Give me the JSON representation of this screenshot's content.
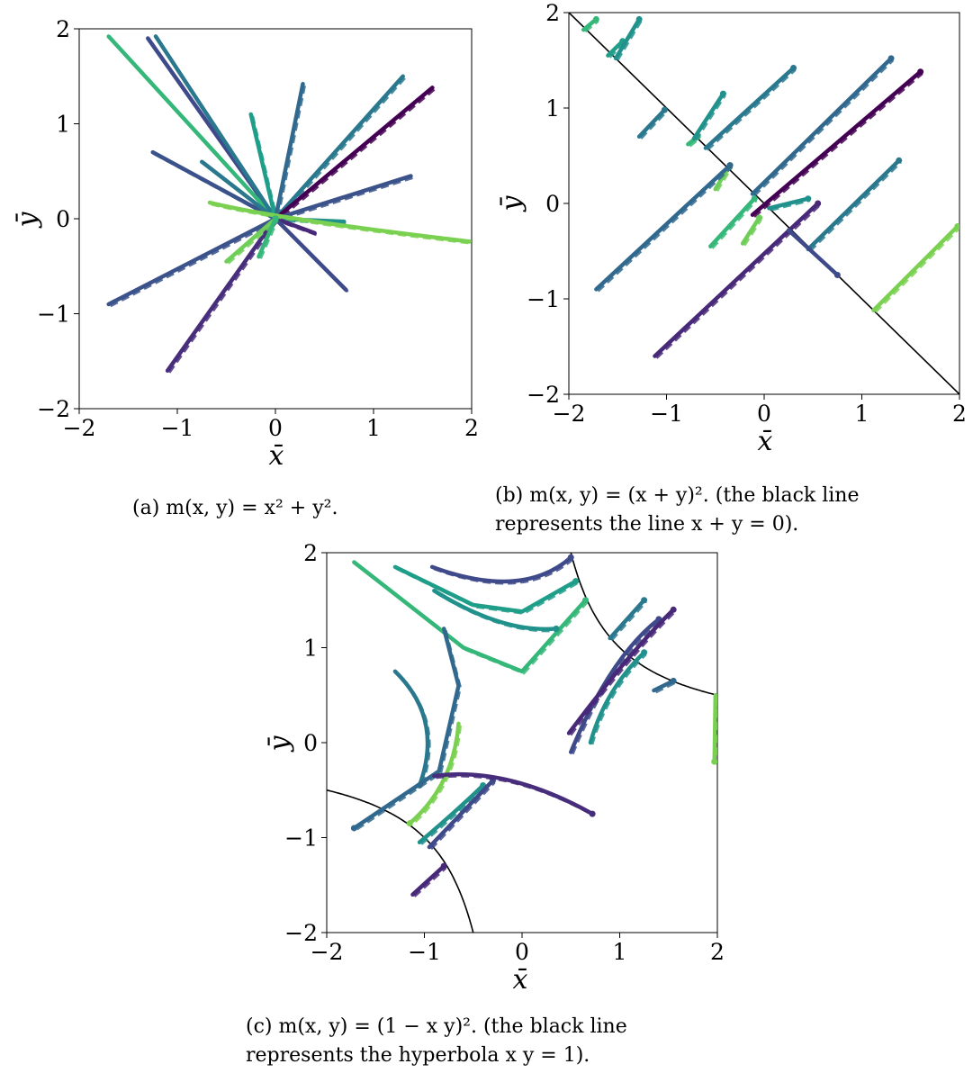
{
  "figure": {
    "caption_a": "(a) m(x, y) = x² + y².",
    "caption_b": "(b) m(x, y) = (x + y)². (the black line represents the line x + y = 0).",
    "caption_c": "(c) m(x, y) = (1 − x y)². (the black line represents the hyperbola x y = 1)."
  },
  "chart_data": [
    {
      "id": "a",
      "type": "line",
      "xlabel": "x̄",
      "ylabel": "ȳ",
      "xlim": [
        -2,
        2
      ],
      "ylim": [
        -2,
        2
      ],
      "xticks": [
        "−2",
        "−1",
        "0",
        "1",
        "2"
      ],
      "yticks": [
        "−2",
        "−1",
        "0",
        "1",
        "2"
      ],
      "grid": false,
      "legend": "none",
      "series": [
        {
          "color": "#3e4a89",
          "points": [
            [
              -1.3,
              1.9
            ],
            [
              0,
              0
            ]
          ]
        },
        {
          "color": "#35b779",
          "points": [
            [
              -1.7,
              1.92
            ],
            [
              0,
              0
            ]
          ]
        },
        {
          "color": "#2a788e",
          "points": [
            [
              -1.22,
              1.92
            ],
            [
              0,
              0
            ]
          ]
        },
        {
          "color": "#3b528b",
          "points": [
            [
              -1.25,
              0.7
            ],
            [
              0,
              0
            ]
          ]
        },
        {
          "color": "#2a788e",
          "points": [
            [
              -0.75,
              0.6
            ],
            [
              0,
              0
            ]
          ]
        },
        {
          "color": "#1f9e89",
          "points": [
            [
              -0.25,
              1.1
            ],
            [
              0,
              0
            ]
          ]
        },
        {
          "color": "#31688e",
          "points": [
            [
              0.28,
              1.42
            ],
            [
              0,
              0
            ]
          ]
        },
        {
          "color": "#2a788e",
          "points": [
            [
              1.3,
              1.5
            ],
            [
              0,
              0
            ]
          ]
        },
        {
          "color": "#440154",
          "points": [
            [
              1.6,
              1.38
            ],
            [
              0,
              0
            ]
          ]
        },
        {
          "color": "#3b528b",
          "points": [
            [
              1.38,
              0.45
            ],
            [
              0,
              0
            ]
          ]
        },
        {
          "color": "#21918c",
          "points": [
            [
              0.7,
              -0.03
            ],
            [
              0,
              0
            ]
          ]
        },
        {
          "color": "#482878",
          "points": [
            [
              0.4,
              -0.15
            ],
            [
              0,
              0
            ]
          ]
        },
        {
          "color": "#7ad151",
          "points": [
            [
              -0.67,
              0.17
            ],
            [
              0,
              0
            ],
            [
              1.98,
              -0.24
            ]
          ]
        },
        {
          "color": "#3e4a89",
          "points": [
            [
              0.72,
              -0.75
            ],
            [
              0,
              0
            ]
          ]
        },
        {
          "color": "#3b528b",
          "points": [
            [
              -1.7,
              -0.9
            ],
            [
              0,
              0
            ]
          ]
        },
        {
          "color": "#472d7b",
          "points": [
            [
              -1.1,
              -1.6
            ],
            [
              0,
              0
            ]
          ]
        },
        {
          "color": "#6ece58",
          "points": [
            [
              -0.5,
              -0.45
            ],
            [
              0,
              0
            ]
          ]
        },
        {
          "color": "#35b779",
          "points": [
            [
              -0.17,
              -0.4
            ],
            [
              0,
              0
            ]
          ]
        }
      ]
    },
    {
      "id": "b",
      "type": "line",
      "xlabel": "x̄",
      "ylabel": "ȳ",
      "xlim": [
        -2,
        2
      ],
      "ylim": [
        -2,
        2
      ],
      "xticks": [
        "−2",
        "−1",
        "0",
        "1",
        "2"
      ],
      "yticks": [
        "−2",
        "−1",
        "0",
        "1",
        "2"
      ],
      "grid": false,
      "legend": "none",
      "reference_line": {
        "color": "#000000",
        "points": [
          [
            -2,
            2
          ],
          [
            2,
            -2
          ]
        ]
      },
      "series": [
        {
          "color": "#35b779",
          "points": [
            [
              -1.85,
              1.82
            ],
            [
              -1.72,
              1.93
            ]
          ]
        },
        {
          "color": "#1f9e89",
          "points": [
            [
              -1.6,
              1.55
            ],
            [
              -1.45,
              1.7
            ]
          ]
        },
        {
          "color": "#21918c",
          "points": [
            [
              -1.52,
              1.52
            ],
            [
              -1.28,
              1.93
            ]
          ]
        },
        {
          "color": "#2a788e",
          "points": [
            [
              -1.28,
              0.7
            ],
            [
              -1.02,
              0.98
            ]
          ]
        },
        {
          "color": "#35b779",
          "points": [
            [
              -0.78,
              0.62
            ],
            [
              -0.68,
              0.7
            ]
          ]
        },
        {
          "color": "#21918c",
          "points": [
            [
              -0.72,
              0.68
            ],
            [
              -0.42,
              1.15
            ]
          ]
        },
        {
          "color": "#2a788e",
          "points": [
            [
              -0.6,
              0.58
            ],
            [
              0.3,
              1.42
            ]
          ]
        },
        {
          "color": "#31688e",
          "points": [
            [
              -0.12,
              0.1
            ],
            [
              1.3,
              1.52
            ]
          ]
        },
        {
          "color": "#440154",
          "points": [
            [
              -0.12,
              -0.12
            ],
            [
              1.6,
              1.38
            ]
          ]
        },
        {
          "color": "#6ece58",
          "points": [
            [
              -0.5,
              0.15
            ],
            [
              -0.35,
              0.4
            ]
          ]
        },
        {
          "color": "#31688e",
          "points": [
            [
              -1.72,
              -0.9
            ],
            [
              -0.35,
              0.4
            ]
          ]
        },
        {
          "color": "#2a788e",
          "points": [
            [
              0.45,
              -0.48
            ],
            [
              1.38,
              0.45
            ]
          ]
        },
        {
          "color": "#35b779",
          "points": [
            [
              -0.55,
              -0.45
            ],
            [
              -0.1,
              0.05
            ]
          ]
        },
        {
          "color": "#21918c",
          "points": [
            [
              0.05,
              -0.05
            ],
            [
              0.45,
              0.05
            ]
          ]
        },
        {
          "color": "#6ece58",
          "points": [
            [
              -0.22,
              -0.42
            ],
            [
              -0.05,
              -0.15
            ]
          ]
        },
        {
          "color": "#482878",
          "points": [
            [
              -1.12,
              -1.6
            ],
            [
              0.55,
              0.0
            ]
          ]
        },
        {
          "color": "#3e4a89",
          "points": [
            [
              0.25,
              -0.28
            ],
            [
              0.75,
              -0.75
            ]
          ]
        },
        {
          "color": "#7ad151",
          "points": [
            [
              1.12,
              -1.12
            ],
            [
              1.98,
              -0.24
            ]
          ]
        }
      ]
    },
    {
      "id": "c",
      "type": "line",
      "xlabel": "x̄",
      "ylabel": "ȳ",
      "xlim": [
        -2,
        2
      ],
      "ylim": [
        -2,
        2
      ],
      "xticks": [
        "−2",
        "−1",
        "0",
        "1",
        "2"
      ],
      "yticks": [
        "−2",
        "−1",
        "0",
        "1",
        "2"
      ],
      "grid": false,
      "legend": "none",
      "reference_curve": "x y = 1",
      "series": [
        {
          "color": "#3e4a89",
          "points": [
            [
              -0.92,
              1.85
            ],
            [
              0.0,
              1.5
            ],
            [
              0.5,
              1.95
            ]
          ]
        },
        {
          "color": "#1f9e89",
          "points": [
            [
              -1.3,
              1.85
            ],
            [
              -0.5,
              1.45
            ],
            [
              0.0,
              1.38
            ],
            [
              0.55,
              1.7
            ]
          ]
        },
        {
          "color": "#35b779",
          "points": [
            [
              -1.72,
              1.9
            ],
            [
              -0.6,
              1.0
            ],
            [
              0.0,
              0.75
            ],
            [
              0.65,
              1.5
            ]
          ]
        },
        {
          "color": "#21918c",
          "points": [
            [
              -0.9,
              1.6
            ],
            [
              -0.2,
              1.15
            ],
            [
              0.35,
              1.2
            ]
          ]
        },
        {
          "color": "#2a788e",
          "points": [
            [
              -1.3,
              0.75
            ],
            [
              -0.8,
              0.25
            ],
            [
              -1.05,
              -0.45
            ]
          ]
        },
        {
          "color": "#31688e",
          "points": [
            [
              -0.8,
              1.2
            ],
            [
              -0.65,
              0.6
            ],
            [
              -0.85,
              -0.3
            ],
            [
              -1.72,
              -0.9
            ]
          ]
        },
        {
          "color": "#7ad151",
          "points": [
            [
              -0.65,
              0.2
            ],
            [
              -0.7,
              -0.45
            ],
            [
              -1.15,
              -0.85
            ]
          ]
        },
        {
          "color": "#21918c",
          "points": [
            [
              -1.05,
              -1.05
            ],
            [
              -0.65,
              -0.7
            ],
            [
              -0.4,
              -0.45
            ]
          ]
        },
        {
          "color": "#3e4a89",
          "points": [
            [
              -0.95,
              -1.1
            ],
            [
              -0.3,
              -0.4
            ]
          ]
        },
        {
          "color": "#2a788e",
          "points": [
            [
              0.9,
              1.1
            ],
            [
              1.25,
              1.5
            ]
          ]
        },
        {
          "color": "#3e4a89",
          "points": [
            [
              0.5,
              -0.1
            ],
            [
              0.9,
              0.9
            ],
            [
              1.4,
              1.3
            ]
          ]
        },
        {
          "color": "#482878",
          "points": [
            [
              0.48,
              0.1
            ],
            [
              1.1,
              0.95
            ],
            [
              1.55,
              1.4
            ]
          ]
        },
        {
          "color": "#21918c",
          "points": [
            [
              0.7,
              0.0
            ],
            [
              0.85,
              0.55
            ],
            [
              1.25,
              0.95
            ]
          ]
        },
        {
          "color": "#31688e",
          "points": [
            [
              1.35,
              0.55
            ],
            [
              1.55,
              0.65
            ]
          ]
        },
        {
          "color": "#472d7b",
          "points": [
            [
              -0.9,
              -0.35
            ],
            [
              -0.15,
              -0.25
            ],
            [
              0.72,
              -0.75
            ]
          ]
        },
        {
          "color": "#482878",
          "points": [
            [
              -1.12,
              -1.6
            ],
            [
              -0.8,
              -1.3
            ]
          ]
        },
        {
          "color": "#7ad151",
          "points": [
            [
              1.98,
              0.5
            ],
            [
              1.97,
              -0.2
            ]
          ]
        }
      ]
    }
  ]
}
